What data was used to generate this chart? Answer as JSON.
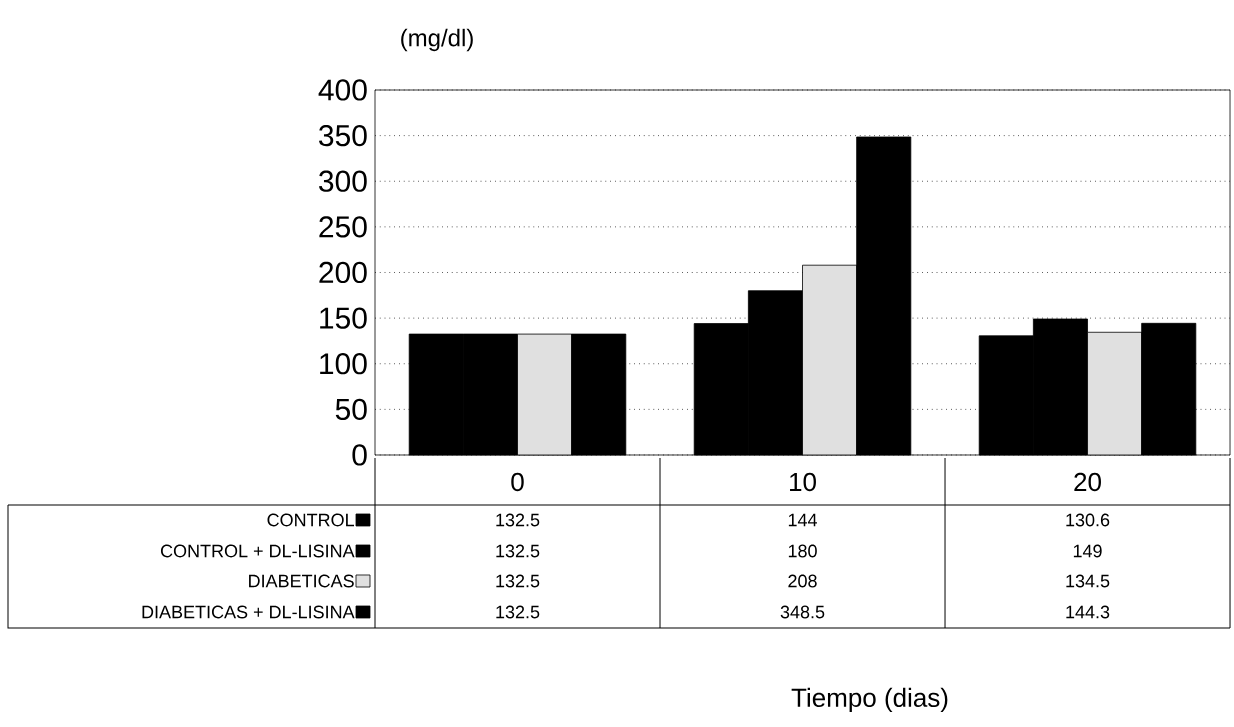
{
  "chart_data": {
    "type": "bar",
    "ylabel": "(mg/dl)",
    "annotations": [
      "Tiempo (dias)"
    ],
    "categories": [
      "0",
      "10",
      "20"
    ],
    "series": [
      {
        "name": "CONTROL",
        "color": "#000000",
        "values": [
          132.5,
          144,
          130.6
        ]
      },
      {
        "name": "CONTROL + DL-LISINA",
        "color": "#000000",
        "values": [
          132.5,
          180,
          149
        ]
      },
      {
        "name": "DIABETICAS",
        "color": "#e0e0e0",
        "values": [
          132.5,
          208,
          134.5
        ]
      },
      {
        "name": "DIABETICAS + DL-LISINA",
        "color": "#000000",
        "values": [
          132.5,
          348.5,
          144.3
        ]
      }
    ],
    "ylim": [
      0,
      400
    ],
    "yticks": [
      0,
      50,
      100,
      150,
      200,
      250,
      300,
      350,
      400
    ],
    "grid": "y",
    "legend": "bottom left",
    "data_labels": true
  }
}
